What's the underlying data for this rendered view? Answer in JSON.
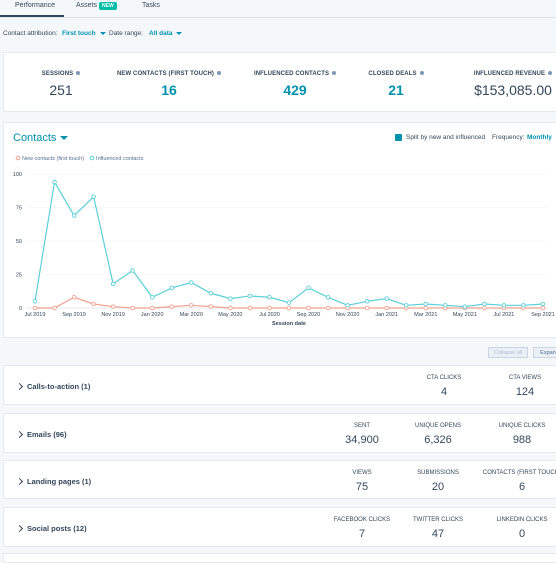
{
  "tabs": [
    {
      "label": "Performance"
    },
    {
      "label": "Assets",
      "badge": "NEW"
    },
    {
      "label": "Tasks"
    }
  ],
  "filters": {
    "attribution_label": "Contact attribution:",
    "attribution_value": "First touch",
    "range_label": "Date range:",
    "range_value": "All data"
  },
  "kpis": [
    {
      "label": "SESSIONS",
      "value": "251"
    },
    {
      "label": "NEW CONTACTS (FIRST TOUCH)",
      "value": "16"
    },
    {
      "label": "INFLUENCED CONTACTS",
      "value": "429"
    },
    {
      "label": "CLOSED DEALS",
      "value": "21"
    },
    {
      "label": "INFLUENCED REVENUE",
      "value": "$153,085.00"
    }
  ],
  "chart_panel": {
    "title": "Contacts",
    "checkbox": "Split by new and influenced",
    "frequency_label": "Frequency:",
    "frequency_value": "Monthly"
  },
  "chart_data": {
    "type": "line",
    "x_label": "Session date",
    "categories": [
      "Jul 2019",
      null,
      "Sep 2019",
      null,
      "Nov 2019",
      null,
      "Jan 2020",
      null,
      "Mar 2020",
      null,
      "May 2020",
      null,
      "Jul 2020",
      null,
      "Sep 2020",
      null,
      "Nov 2020",
      null,
      "Jan 2021",
      null,
      "Mar 2021",
      null,
      "May 2021",
      null,
      "Jul 2021",
      null,
      "Sep 2021"
    ],
    "series": [
      {
        "name": "New contacts (first touch)",
        "color": "#f2a08f",
        "values": [
          0,
          0,
          8,
          3,
          1,
          0,
          0,
          1,
          2,
          1,
          0,
          0,
          0,
          0,
          0,
          0,
          0,
          0,
          0,
          0,
          0,
          0,
          0,
          0,
          0,
          0,
          0
        ]
      },
      {
        "name": "Influenced contacts",
        "color": "#5ccfd9",
        "values": [
          5,
          94,
          69,
          83,
          18,
          28,
          8,
          15,
          19,
          11,
          7,
          9,
          8,
          4,
          15,
          8,
          2,
          5,
          7,
          2,
          3,
          2,
          1,
          3,
          2,
          2,
          3
        ]
      }
    ],
    "ylim": [
      0,
      100
    ],
    "yticks": [
      0,
      25,
      50,
      75,
      100
    ],
    "grid": true
  },
  "buttons": {
    "collapse": "Collapse all",
    "expand": "Expand all"
  },
  "sections": [
    {
      "title": "Calls-to-action (1)",
      "metrics": [
        {
          "label": "CTA CLICKS",
          "value": "4"
        },
        {
          "label": "CTA VIEWS",
          "value": "124"
        }
      ]
    },
    {
      "title": "Emails (96)",
      "metrics": [
        {
          "label": "SENT",
          "value": "34,900"
        },
        {
          "label": "UNIQUE OPENS",
          "value": "6,326"
        },
        {
          "label": "UNIQUE CLICKS",
          "value": "988"
        }
      ]
    },
    {
      "title": "Landing pages (1)",
      "metrics": [
        {
          "label": "VIEWS",
          "value": "75"
        },
        {
          "label": "SUBMISSIONS",
          "value": "20"
        },
        {
          "label": "CONTACTS (FIRST TOUCH)",
          "value": "6"
        }
      ]
    },
    {
      "title": "Social posts (12)",
      "metrics": [
        {
          "label": "FACEBOOK CLICKS",
          "value": "7"
        },
        {
          "label": "TWITTER CLICKS",
          "value": "47"
        },
        {
          "label": "LINKEDIN CLICKS",
          "value": "0"
        }
      ]
    }
  ]
}
